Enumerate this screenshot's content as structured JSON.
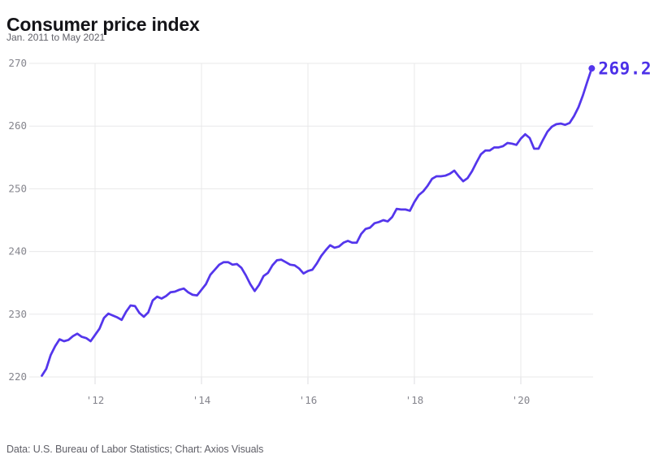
{
  "header": {
    "title": "Consumer price index",
    "subtitle": "Jan. 2011 to May 2021"
  },
  "footer": {
    "source": "Data: U.S. Bureau of Labor Statistics; Chart: Axios Visuals"
  },
  "chart_data": {
    "type": "line",
    "title": "Consumer price index",
    "subtitle": "Jan. 2011 to May 2021",
    "frequency": "monthly",
    "x_start": {
      "year": 2011,
      "month": "Jan"
    },
    "x_end": {
      "year": 2021,
      "month": "May"
    },
    "series": [
      {
        "name": "Consumer price index",
        "values": [
          220.2,
          221.3,
          223.5,
          224.9,
          226.0,
          225.7,
          225.9,
          226.5,
          226.9,
          226.4,
          226.2,
          225.7,
          226.7,
          227.7,
          229.4,
          230.1,
          229.8,
          229.5,
          229.1,
          230.4,
          231.4,
          231.3,
          230.2,
          229.6,
          230.3,
          232.2,
          232.8,
          232.5,
          232.9,
          233.5,
          233.6,
          233.9,
          234.1,
          233.5,
          233.1,
          233.0,
          233.9,
          234.8,
          236.3,
          237.1,
          237.9,
          238.3,
          238.3,
          237.9,
          238.0,
          237.4,
          236.2,
          234.8,
          233.7,
          234.7,
          236.1,
          236.6,
          237.8,
          238.6,
          238.7,
          238.3,
          237.9,
          237.8,
          237.3,
          236.5,
          236.9,
          237.1,
          238.1,
          239.3,
          240.2,
          241.0,
          240.6,
          240.8,
          241.4,
          241.7,
          241.4,
          241.4,
          242.8,
          243.6,
          243.8,
          244.5,
          244.7,
          245.0,
          244.8,
          245.5,
          246.8,
          246.7,
          246.7,
          246.5,
          247.9,
          249.0,
          249.6,
          250.5,
          251.6,
          252.0,
          252.0,
          252.1,
          252.4,
          252.9,
          252.0,
          251.2,
          251.7,
          252.8,
          254.2,
          255.5,
          256.1,
          256.1,
          256.6,
          256.6,
          256.8,
          257.3,
          257.2,
          257.0,
          258.0,
          258.7,
          258.1,
          256.4,
          256.4,
          257.8,
          259.1,
          259.9,
          260.3,
          260.4,
          260.2,
          260.5,
          261.6,
          263.0,
          264.9,
          267.1,
          269.2
        ]
      }
    ],
    "x_axis": {
      "tick_labels": [
        "'12",
        "'14",
        "'16",
        "'18",
        "'20"
      ],
      "tick_years": [
        2012,
        2014,
        2016,
        2018,
        2020
      ],
      "range_years": [
        2011.0,
        2021.417
      ]
    },
    "y_axis": {
      "ticks": [
        220,
        230,
        240,
        250,
        260,
        270
      ],
      "tick_labels": [
        "220",
        "230",
        "240",
        "250",
        "260",
        "270"
      ],
      "range": [
        220,
        270
      ]
    },
    "end_label": "269.2",
    "legend": "none",
    "grid": true,
    "colors": {
      "line": "#5436ec",
      "end_label": "#4c30e8",
      "grid": "#e8e8ea",
      "tick_stub": "#dcdce0",
      "tick_text": "#85858d"
    }
  }
}
